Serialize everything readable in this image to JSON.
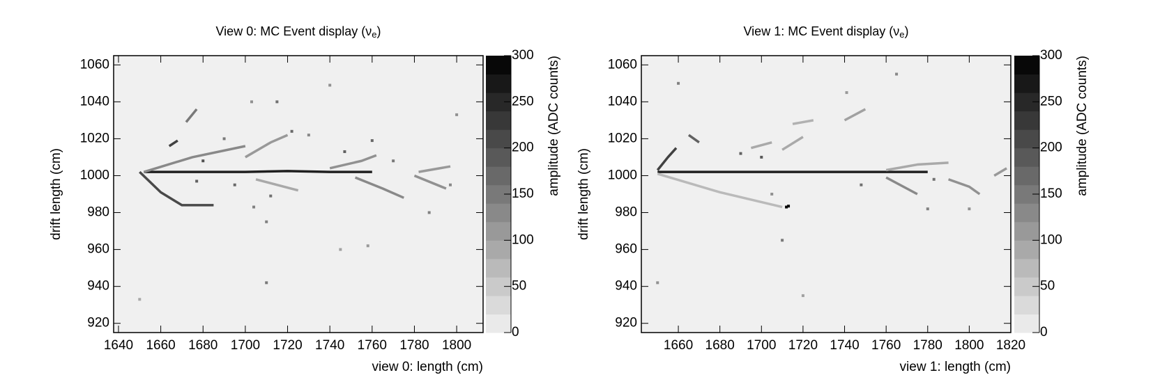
{
  "chart_data": [
    {
      "type": "event-display",
      "title": {
        "text": "View 0: MC Event display (ν",
        "subscript": "e",
        "close": ")"
      },
      "xlabel": "view 0: length (cm)",
      "ylabel": "drift length (cm)",
      "zlabel": "amplitude (ADC counts)",
      "xlim": [
        1637.7,
        1812.5
      ],
      "ylim": [
        915,
        1065
      ],
      "zlim": [
        0,
        300
      ],
      "xticks": [
        1640,
        1660,
        1680,
        1700,
        1720,
        1740,
        1760,
        1780,
        1800
      ],
      "yticks": [
        920,
        940,
        960,
        980,
        1000,
        1020,
        1040,
        1060
      ],
      "zticks": [
        0,
        50,
        100,
        150,
        200,
        250,
        300
      ],
      "tracks": [
        {
          "x": [
            1652,
            1700,
            1720,
            1740,
            1760
          ],
          "y": [
            1002,
            1002,
            1002.5,
            1002,
            1002
          ],
          "amplitude": 260
        },
        {
          "x": [
            1650,
            1660,
            1670,
            1685
          ],
          "y": [
            1002,
            991,
            984,
            984
          ],
          "amplitude": 210
        },
        {
          "x": [
            1652,
            1675,
            1700
          ],
          "y": [
            1002,
            1010,
            1016
          ],
          "amplitude": 130
        },
        {
          "x": [
            1672,
            1677
          ],
          "y": [
            1029,
            1036
          ],
          "amplitude": 150
        },
        {
          "x": [
            1664,
            1668
          ],
          "y": [
            1016,
            1019
          ],
          "amplitude": 220
        },
        {
          "x": [
            1700,
            1712,
            1720
          ],
          "y": [
            1010,
            1018,
            1022
          ],
          "amplitude": 110
        },
        {
          "x": [
            1740,
            1755,
            1762
          ],
          "y": [
            1004,
            1008,
            1011
          ],
          "amplitude": 120
        },
        {
          "x": [
            1752,
            1765,
            1775
          ],
          "y": [
            999,
            993,
            988
          ],
          "amplitude": 130
        },
        {
          "x": [
            1780,
            1795
          ],
          "y": [
            1000,
            993
          ],
          "amplitude": 120
        },
        {
          "x": [
            1782,
            1797
          ],
          "y": [
            1002,
            1005
          ],
          "amplitude": 110
        },
        {
          "x": [
            1705,
            1725
          ],
          "y": [
            998,
            992
          ],
          "amplitude": 90
        }
      ],
      "hits": {
        "x": [
          1690,
          1703,
          1710,
          1715,
          1740,
          1745,
          1760,
          1710,
          1704,
          1758,
          1800,
          1797,
          1650,
          1712,
          1677,
          1747,
          1770,
          1730,
          1787,
          1722,
          1680,
          1695
        ],
        "y": [
          1020,
          1040,
          975,
          1040,
          1049,
          960,
          1019,
          942,
          983,
          962,
          1033,
          995,
          933,
          989,
          997,
          1013,
          1008,
          1022,
          980,
          1024,
          1008,
          995
        ],
        "z": [
          150,
          120,
          140,
          160,
          120,
          100,
          170,
          150,
          140,
          110,
          120,
          130,
          90,
          160,
          180,
          180,
          150,
          130,
          140,
          170,
          200,
          170
        ]
      }
    },
    {
      "type": "event-display",
      "title": {
        "text": "View 1: MC Event display (ν",
        "subscript": "e",
        "close": ")"
      },
      "xlabel": "view 1: length (cm)",
      "ylabel": "drift length (cm)",
      "zlabel": "amplitude (ADC counts)",
      "xlim": [
        1642.2,
        1820
      ],
      "ylim": [
        915,
        1065
      ],
      "zlim": [
        0,
        300
      ],
      "xticks": [
        1660,
        1680,
        1700,
        1720,
        1740,
        1760,
        1780,
        1800,
        1820
      ],
      "yticks": [
        920,
        940,
        960,
        980,
        1000,
        1020,
        1040,
        1060
      ],
      "zticks": [
        0,
        50,
        100,
        150,
        200,
        250,
        300
      ],
      "tracks": [
        {
          "x": [
            1650,
            1700,
            1740,
            1780
          ],
          "y": [
            1002,
            1002,
            1002,
            1002
          ],
          "amplitude": 260
        },
        {
          "x": [
            1650,
            1680,
            1710
          ],
          "y": [
            1001,
            991,
            983
          ],
          "amplitude": 70
        },
        {
          "x": [
            1650,
            1655,
            1659
          ],
          "y": [
            1003,
            1010,
            1015
          ],
          "amplitude": 220
        },
        {
          "x": [
            1665,
            1670
          ],
          "y": [
            1022,
            1018
          ],
          "amplitude": 180
        },
        {
          "x": [
            1695,
            1705
          ],
          "y": [
            1015,
            1018
          ],
          "amplitude": 90
        },
        {
          "x": [
            1710,
            1720
          ],
          "y": [
            1014,
            1021
          ],
          "amplitude": 90
        },
        {
          "x": [
            1740,
            1750
          ],
          "y": [
            1030,
            1036
          ],
          "amplitude": 100
        },
        {
          "x": [
            1715,
            1725
          ],
          "y": [
            1028,
            1030
          ],
          "amplitude": 80
        },
        {
          "x": [
            1760,
            1775,
            1790
          ],
          "y": [
            1003,
            1006,
            1007
          ],
          "amplitude": 90
        },
        {
          "x": [
            1760,
            1775
          ],
          "y": [
            999,
            990
          ],
          "amplitude": 130
        },
        {
          "x": [
            1790,
            1800,
            1805
          ],
          "y": [
            998,
            994,
            990
          ],
          "amplitude": 120
        },
        {
          "x": [
            1812,
            1818
          ],
          "y": [
            1000,
            1004
          ],
          "amplitude": 110
        }
      ],
      "hits": {
        "x": [
          1712,
          1713,
          1660,
          1710,
          1705,
          1765,
          1780,
          1720,
          1650,
          1690,
          1741,
          1800,
          1748,
          1700,
          1783
        ],
        "y": [
          983,
          983.5,
          1050,
          965,
          990,
          1055,
          982,
          935,
          942,
          1012,
          1045,
          982,
          995,
          1010,
          998
        ],
        "z": [
          290,
          290,
          140,
          150,
          120,
          130,
          140,
          100,
          120,
          180,
          110,
          120,
          160,
          190,
          160
        ]
      }
    }
  ]
}
